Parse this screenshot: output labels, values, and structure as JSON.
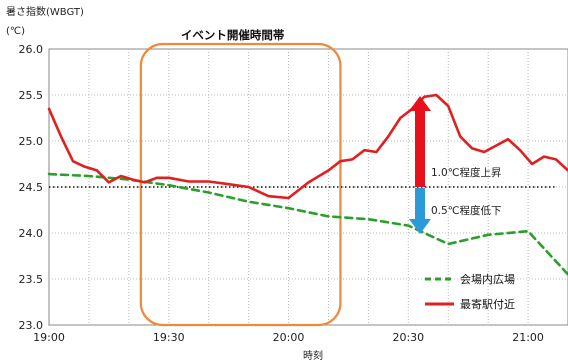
{
  "chart_data": {
    "type": "line",
    "ylabel": "暑さ指数(WBGT)",
    "yunit": "(℃)",
    "xlabel": "時刻",
    "xlim": [
      "19:00",
      "21:10"
    ],
    "ylim": [
      23.0,
      26.0
    ],
    "yticks": [
      "26.0",
      "25.5",
      "25.0",
      "24.5",
      "24.0",
      "23.5",
      "23.0"
    ],
    "xticks": [
      "19:00",
      "19:30",
      "20:00",
      "20:30",
      "21:00"
    ],
    "grid": true,
    "legend_position": "bottom-right",
    "event_label": "イベント開催時間帯",
    "event_range": [
      "19:23",
      "20:13"
    ],
    "baseline_value": 24.5,
    "annotations": {
      "rise": "1.0℃程度上昇",
      "fall": "0.5℃程度低下"
    },
    "series": [
      {
        "name": "会場内広場",
        "color": "#2aa02a",
        "style": "dashed",
        "x": [
          "19:00",
          "19:10",
          "19:20",
          "19:30",
          "19:40",
          "19:50",
          "20:00",
          "20:10",
          "20:20",
          "20:30",
          "20:40",
          "20:50",
          "21:00",
          "21:10"
        ],
        "values": [
          24.64,
          24.62,
          24.58,
          24.52,
          24.44,
          24.34,
          24.27,
          24.18,
          24.15,
          24.08,
          23.88,
          23.98,
          24.02,
          23.55
        ]
      },
      {
        "name": "最寄駅付近",
        "color": "#e02020",
        "style": "solid",
        "x": [
          "19:00",
          "19:03",
          "19:06",
          "19:09",
          "19:12",
          "19:15",
          "19:18",
          "19:21",
          "19:24",
          "19:27",
          "19:30",
          "19:35",
          "19:40",
          "19:45",
          "19:50",
          "19:55",
          "20:00",
          "20:05",
          "20:10",
          "20:13",
          "20:16",
          "20:19",
          "20:22",
          "20:25",
          "20:28",
          "20:31",
          "20:34",
          "20:37",
          "20:40",
          "20:43",
          "20:46",
          "20:49",
          "20:52",
          "20:55",
          "20:58",
          "21:01",
          "21:04",
          "21:07",
          "21:10"
        ],
        "values": [
          25.35,
          25.05,
          24.78,
          24.72,
          24.68,
          24.55,
          24.62,
          24.58,
          24.55,
          24.6,
          24.6,
          24.56,
          24.56,
          24.53,
          24.5,
          24.4,
          24.38,
          24.55,
          24.68,
          24.78,
          24.8,
          24.9,
          24.88,
          25.05,
          25.25,
          25.35,
          25.48,
          25.5,
          25.38,
          25.05,
          24.92,
          24.88,
          24.95,
          25.02,
          24.9,
          24.75,
          24.83,
          24.8,
          24.68
        ]
      }
    ]
  }
}
